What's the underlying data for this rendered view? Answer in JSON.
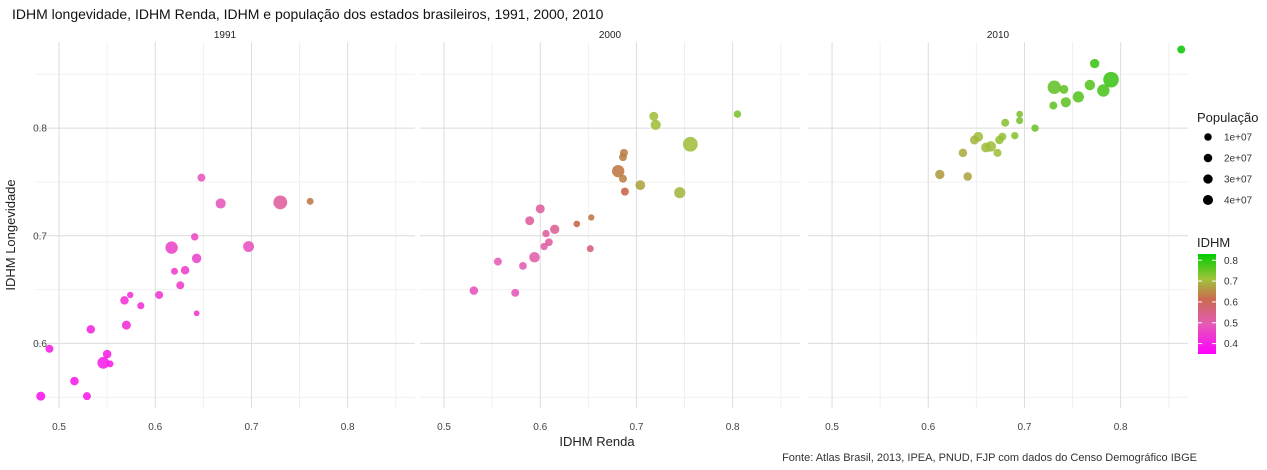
{
  "chart_data": {
    "type": "scatter",
    "title": "IDHM longevidade, IDHM Renda, IDHM e população dos estados brasileiros, 1991, 2000, 2010",
    "xlabel": "IDHM Renda",
    "ylabel": "IDHM Longevidade",
    "caption": "Fonte: Atlas Brasil, 2013, IPEA, PNUD, FJP com dados do Censo Demográfico IBGE",
    "xlim": [
      0.475,
      0.87
    ],
    "ylim": [
      0.54,
      0.88
    ],
    "x_ticks": [
      "0.5",
      "0.6",
      "0.7",
      "0.8"
    ],
    "y_ticks": [
      "0.6",
      "0.7",
      "0.8"
    ],
    "grid": true,
    "legend_position": "right",
    "size_legend": {
      "title": "População",
      "labels": [
        "1e+07",
        "2e+07",
        "3e+07",
        "4e+07"
      ],
      "values": [
        10000000,
        20000000,
        30000000,
        40000000
      ]
    },
    "color_legend": {
      "title": "IDHM",
      "labels": [
        "0.8",
        "0.7",
        "0.6",
        "0.5",
        "0.4"
      ],
      "values": [
        0.8,
        0.7,
        0.6,
        0.5,
        0.4
      ],
      "range": [
        0.35,
        0.83
      ],
      "low_color": "#ff00ff",
      "high_color": "#00cc00"
    },
    "panels": [
      {
        "label": "1991",
        "points": [
          {
            "x": 0.481,
            "y": 0.551,
            "pop": 3,
            "idhm": 0.38
          },
          {
            "x": 0.49,
            "y": 0.595,
            "pop": 2,
            "idhm": 0.4
          },
          {
            "x": 0.516,
            "y": 0.565,
            "pop": 2.5,
            "idhm": 0.39
          },
          {
            "x": 0.529,
            "y": 0.551,
            "pop": 2,
            "idhm": 0.39
          },
          {
            "x": 0.533,
            "y": 0.613,
            "pop": 2.5,
            "idhm": 0.41
          },
          {
            "x": 0.546,
            "y": 0.582,
            "pop": 7,
            "idhm": 0.4
          },
          {
            "x": 0.55,
            "y": 0.59,
            "pop": 2.5,
            "idhm": 0.4
          },
          {
            "x": 0.553,
            "y": 0.581,
            "pop": 1.2,
            "idhm": 0.4
          },
          {
            "x": 0.568,
            "y": 0.64,
            "pop": 2.5,
            "idhm": 0.43
          },
          {
            "x": 0.57,
            "y": 0.617,
            "pop": 3,
            "idhm": 0.42
          },
          {
            "x": 0.574,
            "y": 0.645,
            "pop": 0.8,
            "idhm": 0.43
          },
          {
            "x": 0.585,
            "y": 0.635,
            "pop": 1.3,
            "idhm": 0.43
          },
          {
            "x": 0.604,
            "y": 0.645,
            "pop": 2,
            "idhm": 0.44
          },
          {
            "x": 0.617,
            "y": 0.689,
            "pop": 8,
            "idhm": 0.46
          },
          {
            "x": 0.62,
            "y": 0.667,
            "pop": 1.2,
            "idhm": 0.45
          },
          {
            "x": 0.626,
            "y": 0.654,
            "pop": 2,
            "idhm": 0.45
          },
          {
            "x": 0.631,
            "y": 0.668,
            "pop": 2.5,
            "idhm": 0.45
          },
          {
            "x": 0.641,
            "y": 0.699,
            "pop": 1.5,
            "idhm": 0.47
          },
          {
            "x": 0.643,
            "y": 0.679,
            "pop": 3.5,
            "idhm": 0.46
          },
          {
            "x": 0.643,
            "y": 0.628,
            "pop": 0.5,
            "idhm": 0.44
          },
          {
            "x": 0.648,
            "y": 0.754,
            "pop": 2,
            "idhm": 0.49
          },
          {
            "x": 0.668,
            "y": 0.73,
            "pop": 4.5,
            "idhm": 0.49
          },
          {
            "x": 0.697,
            "y": 0.69,
            "pop": 5.5,
            "idhm": 0.48
          },
          {
            "x": 0.73,
            "y": 0.731,
            "pop": 11,
            "idhm": 0.52
          },
          {
            "x": 0.761,
            "y": 0.732,
            "pop": 1.2,
            "idhm": 0.62
          }
        ]
      },
      {
        "label": "2000",
        "points": [
          {
            "x": 0.531,
            "y": 0.649,
            "pop": 2.5,
            "idhm": 0.48
          },
          {
            "x": 0.556,
            "y": 0.676,
            "pop": 2,
            "idhm": 0.5
          },
          {
            "x": 0.574,
            "y": 0.647,
            "pop": 2,
            "idhm": 0.49
          },
          {
            "x": 0.582,
            "y": 0.672,
            "pop": 1.8,
            "idhm": 0.5
          },
          {
            "x": 0.589,
            "y": 0.714,
            "pop": 3,
            "idhm": 0.52
          },
          {
            "x": 0.594,
            "y": 0.68,
            "pop": 5,
            "idhm": 0.51
          },
          {
            "x": 0.6,
            "y": 0.725,
            "pop": 3,
            "idhm": 0.52
          },
          {
            "x": 0.604,
            "y": 0.69,
            "pop": 1.5,
            "idhm": 0.51
          },
          {
            "x": 0.606,
            "y": 0.702,
            "pop": 1.5,
            "idhm": 0.52
          },
          {
            "x": 0.609,
            "y": 0.694,
            "pop": 1.8,
            "idhm": 0.52
          },
          {
            "x": 0.615,
            "y": 0.706,
            "pop": 3.5,
            "idhm": 0.53
          },
          {
            "x": 0.638,
            "y": 0.711,
            "pop": 1,
            "idhm": 0.6
          },
          {
            "x": 0.652,
            "y": 0.688,
            "pop": 1.2,
            "idhm": 0.55
          },
          {
            "x": 0.653,
            "y": 0.717,
            "pop": 0.8,
            "idhm": 0.62
          },
          {
            "x": 0.681,
            "y": 0.76,
            "pop": 8,
            "idhm": 0.62
          },
          {
            "x": 0.686,
            "y": 0.753,
            "pop": 2,
            "idhm": 0.63
          },
          {
            "x": 0.686,
            "y": 0.773,
            "pop": 2,
            "idhm": 0.63
          },
          {
            "x": 0.687,
            "y": 0.777,
            "pop": 2,
            "idhm": 0.63
          },
          {
            "x": 0.688,
            "y": 0.741,
            "pop": 2,
            "idhm": 0.6
          },
          {
            "x": 0.704,
            "y": 0.747,
            "pop": 4,
            "idhm": 0.67
          },
          {
            "x": 0.718,
            "y": 0.811,
            "pop": 3,
            "idhm": 0.7
          },
          {
            "x": 0.72,
            "y": 0.803,
            "pop": 4.5,
            "idhm": 0.7
          },
          {
            "x": 0.745,
            "y": 0.74,
            "pop": 6,
            "idhm": 0.69
          },
          {
            "x": 0.756,
            "y": 0.785,
            "pop": 13,
            "idhm": 0.7
          },
          {
            "x": 0.805,
            "y": 0.813,
            "pop": 1.5,
            "idhm": 0.73
          }
        ]
      },
      {
        "label": "2010",
        "points": [
          {
            "x": 0.612,
            "y": 0.757,
            "pop": 3.5,
            "idhm": 0.66
          },
          {
            "x": 0.636,
            "y": 0.777,
            "pop": 2.5,
            "idhm": 0.68
          },
          {
            "x": 0.641,
            "y": 0.755,
            "pop": 2.5,
            "idhm": 0.67
          },
          {
            "x": 0.648,
            "y": 0.789,
            "pop": 3,
            "idhm": 0.69
          },
          {
            "x": 0.652,
            "y": 0.792,
            "pop": 4,
            "idhm": 0.7
          },
          {
            "x": 0.66,
            "y": 0.782,
            "pop": 4,
            "idhm": 0.7
          },
          {
            "x": 0.665,
            "y": 0.783,
            "pop": 5,
            "idhm": 0.7
          },
          {
            "x": 0.672,
            "y": 0.777,
            "pop": 2,
            "idhm": 0.7
          },
          {
            "x": 0.674,
            "y": 0.789,
            "pop": 2.5,
            "idhm": 0.71
          },
          {
            "x": 0.677,
            "y": 0.792,
            "pop": 2,
            "idhm": 0.71
          },
          {
            "x": 0.68,
            "y": 0.805,
            "pop": 2,
            "idhm": 0.72
          },
          {
            "x": 0.69,
            "y": 0.793,
            "pop": 1.5,
            "idhm": 0.72
          },
          {
            "x": 0.695,
            "y": 0.807,
            "pop": 1.3,
            "idhm": 0.73
          },
          {
            "x": 0.695,
            "y": 0.813,
            "pop": 1,
            "idhm": 0.73
          },
          {
            "x": 0.711,
            "y": 0.8,
            "pop": 1.5,
            "idhm": 0.74
          },
          {
            "x": 0.73,
            "y": 0.821,
            "pop": 2,
            "idhm": 0.75
          },
          {
            "x": 0.731,
            "y": 0.838,
            "pop": 10,
            "idhm": 0.75
          },
          {
            "x": 0.741,
            "y": 0.836,
            "pop": 3,
            "idhm": 0.75
          },
          {
            "x": 0.743,
            "y": 0.824,
            "pop": 4.5,
            "idhm": 0.75
          },
          {
            "x": 0.756,
            "y": 0.829,
            "pop": 6,
            "idhm": 0.76
          },
          {
            "x": 0.768,
            "y": 0.84,
            "pop": 5,
            "idhm": 0.76
          },
          {
            "x": 0.773,
            "y": 0.86,
            "pop": 3.5,
            "idhm": 0.78
          },
          {
            "x": 0.782,
            "y": 0.835,
            "pop": 8,
            "idhm": 0.77
          },
          {
            "x": 0.79,
            "y": 0.845,
            "pop": 15,
            "idhm": 0.78
          },
          {
            "x": 0.863,
            "y": 0.873,
            "pop": 2,
            "idhm": 0.82
          }
        ]
      }
    ]
  }
}
